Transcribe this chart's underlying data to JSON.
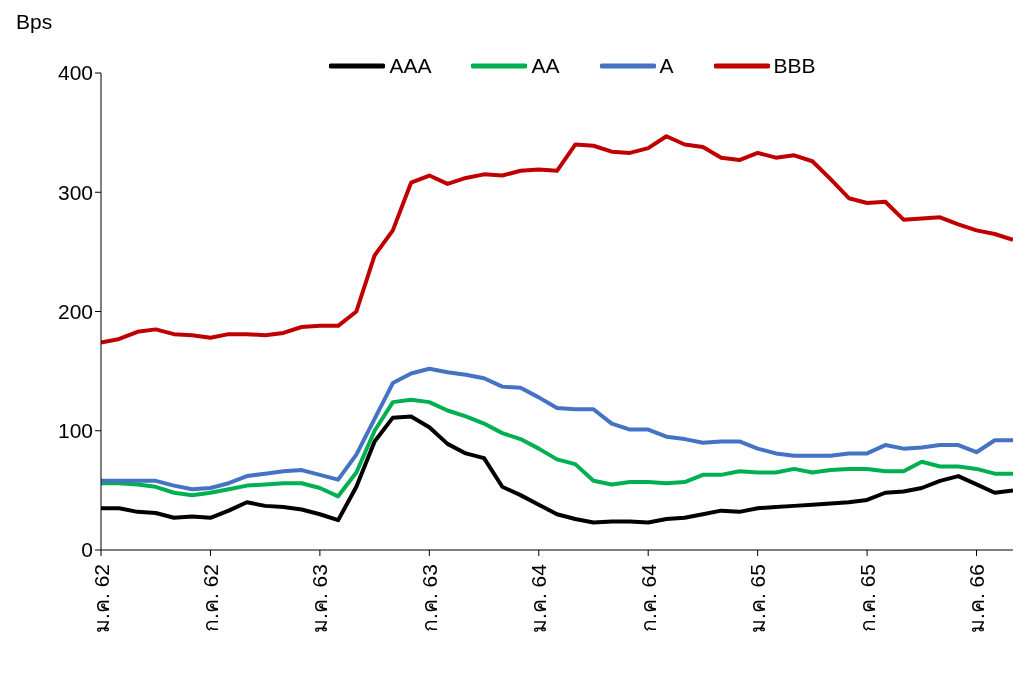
{
  "chart_data": {
    "type": "line",
    "ylabel": "Bps",
    "categories": [
      "ม.ค. 62",
      null,
      null,
      null,
      null,
      null,
      "ก.ค. 62",
      null,
      null,
      null,
      null,
      null,
      "ม.ค. 63",
      null,
      null,
      null,
      null,
      null,
      "ก.ค. 63",
      null,
      null,
      null,
      null,
      null,
      "ม.ค. 64",
      null,
      null,
      null,
      null,
      null,
      "ก.ค. 64",
      null,
      null,
      null,
      null,
      null,
      "ม.ค. 65",
      null,
      null,
      null,
      null,
      null,
      "ก.ค. 65",
      null,
      null,
      null,
      null,
      null,
      "ม.ค. 66",
      null,
      null
    ],
    "series": [
      {
        "name": "AAA",
        "color": "#000000",
        "values": [
          35,
          35,
          32,
          31,
          27,
          28,
          27,
          33,
          40,
          37,
          36,
          34,
          30,
          25,
          53,
          91,
          111,
          112,
          103,
          89,
          81,
          77,
          53,
          46,
          38,
          30,
          26,
          23,
          24,
          24,
          23,
          26,
          27,
          30,
          33,
          32,
          35,
          36,
          37,
          38,
          39,
          40,
          42,
          48,
          49,
          52,
          58,
          62,
          55,
          48,
          50
        ]
      },
      {
        "name": "AA",
        "color": "#00b050",
        "values": [
          56,
          56,
          55,
          53,
          48,
          46,
          48,
          51,
          54,
          55,
          56,
          56,
          52,
          45,
          65,
          100,
          124,
          126,
          124,
          117,
          112,
          106,
          98,
          93,
          85,
          76,
          72,
          58,
          55,
          57,
          57,
          56,
          57,
          63,
          63,
          66,
          65,
          65,
          68,
          65,
          67,
          68,
          68,
          66,
          66,
          74,
          70,
          70,
          68,
          64,
          64
        ]
      },
      {
        "name": "A",
        "color": "#4472c4",
        "values": [
          58,
          58,
          58,
          58,
          54,
          51,
          52,
          56,
          62,
          64,
          66,
          67,
          63,
          59,
          80,
          110,
          140,
          148,
          152,
          149,
          147,
          144,
          137,
          136,
          128,
          119,
          118,
          118,
          106,
          101,
          101,
          95,
          93,
          90,
          91,
          91,
          85,
          81,
          79,
          79,
          79,
          81,
          81,
          88,
          85,
          86,
          88,
          88,
          82,
          92,
          92
        ]
      },
      {
        "name": "BBB",
        "color": "#c00000",
        "values": [
          174,
          177,
          183,
          185,
          181,
          180,
          178,
          181,
          181,
          180,
          182,
          187,
          188,
          188,
          200,
          247,
          268,
          308,
          314,
          307,
          312,
          315,
          314,
          318,
          319,
          318,
          340,
          339,
          334,
          333,
          337,
          347,
          340,
          338,
          329,
          327,
          333,
          329,
          331,
          326,
          311,
          295,
          291,
          292,
          277,
          278,
          279,
          273,
          268,
          265,
          260
        ]
      }
    ],
    "ylim": [
      0,
      400
    ],
    "yticks": [
      0,
      100,
      200,
      300,
      400
    ],
    "grid": false,
    "legend": "top",
    "marker": "none",
    "line_style": "solid"
  }
}
